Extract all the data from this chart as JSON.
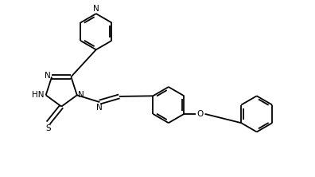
{
  "background_color": "#ffffff",
  "line_color": "#000000",
  "line_width": 1.3,
  "font_size": 7.5,
  "figsize": [
    3.96,
    2.22
  ],
  "dpi": 100,
  "xlim": [
    0,
    10
  ],
  "ylim": [
    0,
    5.6
  ]
}
